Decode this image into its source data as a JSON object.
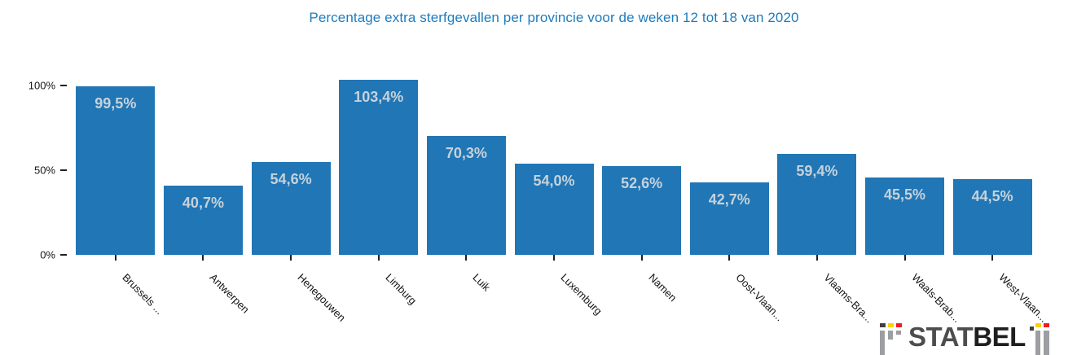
{
  "title": "Percentage extra sterfgevallen per provincie voor de weken 12 tot 18 van 2020",
  "title_color": "#1d7cbe",
  "chart_data": {
    "type": "bar",
    "title": "Percentage extra sterfgevallen per provincie voor de weken 12 tot 18 van 2020",
    "categories": [
      "Brussels ...",
      "Antwerpen",
      "Henegouwen",
      "Limburg",
      "Luik",
      "Luxemburg",
      "Namen",
      "Oost-Vlaan...",
      "Vlaams-Bra...",
      "Waals-Brab...",
      "West-Vlaan..."
    ],
    "values": [
      99.5,
      40.7,
      54.6,
      103.4,
      70.3,
      54.0,
      52.6,
      42.7,
      59.4,
      45.5,
      44.5
    ],
    "value_labels": [
      "99,5%",
      "40,7%",
      "54,6%",
      "103,4%",
      "70,3%",
      "54,0%",
      "52,6%",
      "42,7%",
      "59,4%",
      "45,5%",
      "44,5%"
    ],
    "xlabel": "",
    "ylabel": "",
    "ylim": [
      0,
      100
    ],
    "y_ticks": [
      {
        "label": "0%",
        "value": 0
      },
      {
        "label": "50%",
        "value": 50
      },
      {
        "label": "100%",
        "value": 100
      }
    ],
    "grid": false,
    "legend": false,
    "bar_color": "#2176b5",
    "bar_value_label_color": "#c6d2db"
  },
  "logo": {
    "text_stat": "STAT",
    "text_bel": "BEL",
    "colors": {
      "gray_bar": "#9c9ea1",
      "dark": "#414042",
      "yellow": "#fdd000",
      "red": "#ee1c25"
    }
  }
}
